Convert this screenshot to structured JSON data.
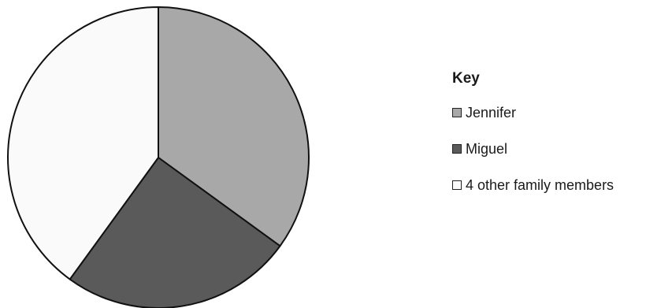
{
  "chart_data": {
    "type": "pie",
    "categories": [
      "Jennifer",
      "Miguel",
      "4 other family members"
    ],
    "values": [
      35,
      25,
      40
    ],
    "colors": [
      "#a8a8a8",
      "#5a5a5a",
      "#fafafa"
    ],
    "start_angle_deg": 0,
    "direction": "clockwise",
    "legend_title": "Key",
    "legend_position": "right"
  }
}
